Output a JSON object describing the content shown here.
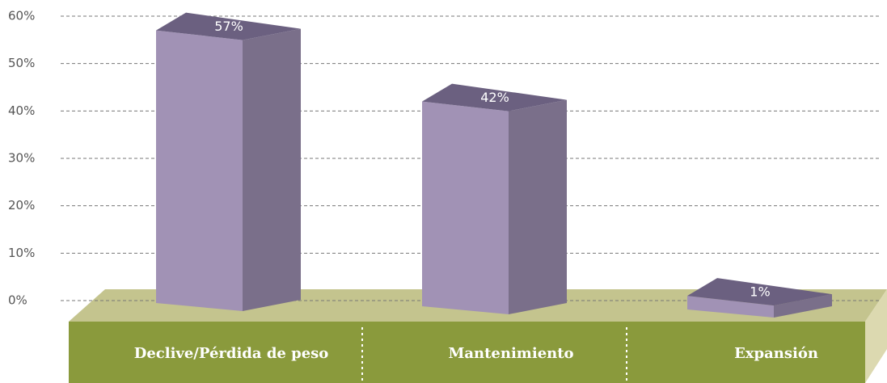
{
  "chart_data": {
    "type": "bar3d",
    "categories": [
      "Declive/Pérdida de peso",
      "Mantenimiento",
      "Expansión"
    ],
    "values": [
      57,
      42,
      1
    ],
    "value_labels": [
      "57%",
      "42%",
      "1%"
    ],
    "ylim": [
      0,
      60
    ],
    "yticks": [
      {
        "value": 0,
        "label": "0%"
      },
      {
        "value": 10,
        "label": "10%"
      },
      {
        "value": 20,
        "label": "20%"
      },
      {
        "value": 30,
        "label": "30%"
      },
      {
        "value": 40,
        "label": "40%"
      },
      {
        "value": 50,
        "label": "50%"
      },
      {
        "value": 60,
        "label": "60%"
      }
    ],
    "grid": true,
    "colors": {
      "front": "#a192b5",
      "side": "#7a6f8a",
      "top": "#6b6080"
    }
  }
}
